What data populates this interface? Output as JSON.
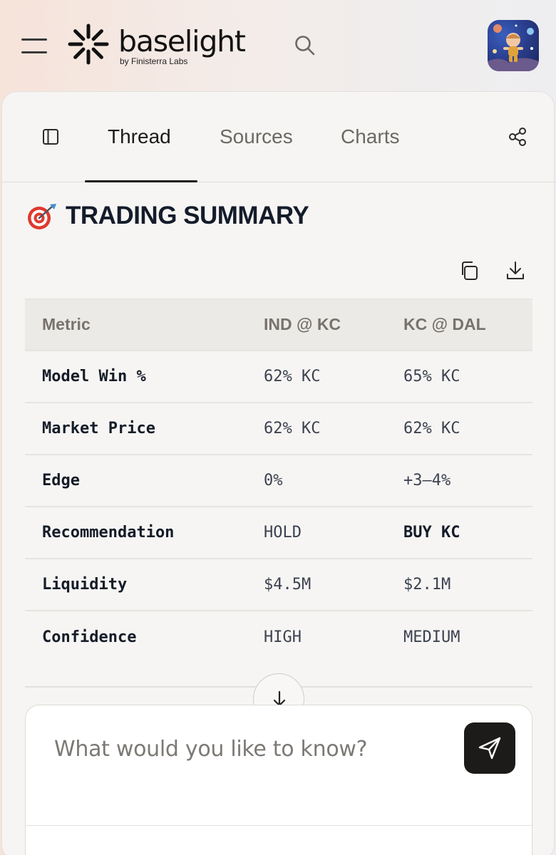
{
  "brand": {
    "name": "baselight",
    "byline": "by Finisterra Labs"
  },
  "tabs": [
    {
      "label": "Thread",
      "active": true
    },
    {
      "label": "Sources",
      "active": false
    },
    {
      "label": "Charts",
      "active": false
    }
  ],
  "summary": {
    "icon": "target-dart-icon",
    "title": "TRADING SUMMARY"
  },
  "table": {
    "headers": [
      "Metric",
      "IND @ KC",
      "KC @ DAL"
    ],
    "rows": [
      [
        "Model Win %",
        "62% KC",
        "65% KC"
      ],
      [
        "Market Price",
        "62% KC",
        "62% KC"
      ],
      [
        "Edge",
        "0%",
        "+3–4%"
      ],
      [
        "Recommendation",
        "HOLD",
        "BUY KC"
      ],
      [
        "Liquidity",
        "$4.5M",
        "$2.1M"
      ],
      [
        "Confidence",
        "HIGH",
        "MEDIUM"
      ]
    ]
  },
  "composer": {
    "placeholder": "What would you like to know?",
    "value": ""
  },
  "colors": {
    "accent": "#1d1b1a",
    "panel": "#f6f5f3",
    "table_header": "#eceae7"
  }
}
